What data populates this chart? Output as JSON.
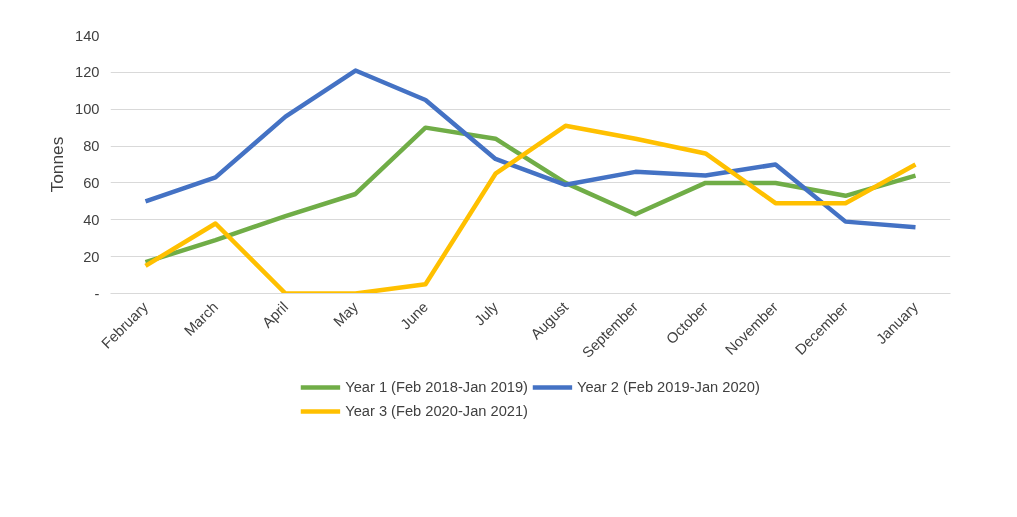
{
  "chart_data": {
    "type": "line",
    "ylabel": "Tonnes",
    "categories": [
      "February",
      "March",
      "April",
      "May",
      "June",
      "July",
      "August",
      "September",
      "October",
      "November",
      "December",
      "January"
    ],
    "series": [
      {
        "name": "Year 1 (Feb 2018-Jan 2019)",
        "color": "#70ad47",
        "values": [
          17,
          29,
          42,
          54,
          90,
          84,
          60,
          43,
          60,
          60,
          53,
          64
        ]
      },
      {
        "name": "Year 2 (Feb 2019-Jan 2020)",
        "color": "#4472c4",
        "values": [
          50,
          63,
          96,
          121,
          105,
          73,
          59,
          66,
          64,
          70,
          39,
          36
        ]
      },
      {
        "name": "Year 3 (Feb 2020-Jan 2021)",
        "color": "#ffc000",
        "values": [
          15,
          38,
          0,
          0,
          5,
          65,
          91,
          84,
          76,
          49,
          49,
          70
        ]
      }
    ],
    "ylim": [
      0,
      140
    ],
    "yticks": [
      {
        "value": 0,
        "label": "-"
      },
      20,
      40,
      60,
      80,
      100,
      120,
      140
    ],
    "grid": "y",
    "legend": "bottom",
    "marker": "none",
    "line_style": "solid"
  }
}
